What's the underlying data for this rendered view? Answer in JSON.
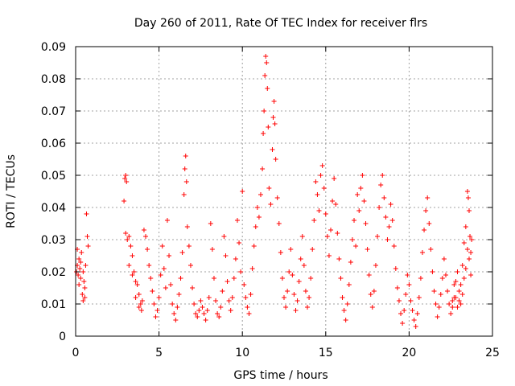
{
  "chart_data": {
    "type": "scatter",
    "title": "Day 260 of 2011, Rate Of TEC Index for receiver flrs",
    "xlabel": "GPS time / hours",
    "ylabel": "ROTI / TECUs",
    "xlim": [
      0,
      25
    ],
    "ylim": [
      0,
      0.09
    ],
    "xticks": [
      0,
      5,
      10,
      15,
      20,
      25
    ],
    "xtick_labels": [
      "0",
      "5",
      "10",
      "15",
      "20",
      "25"
    ],
    "yticks": [
      0,
      0.01,
      0.02,
      0.03,
      0.04,
      0.05,
      0.06,
      0.07,
      0.08,
      0.09
    ],
    "ytick_labels": [
      "0",
      "0.01",
      "0.02",
      "0.03",
      "0.04",
      "0.05",
      "0.06",
      "0.07",
      "0.08",
      "0.09"
    ],
    "grid": true,
    "marker": "+",
    "color": "#ff0000",
    "series": [
      {
        "name": "",
        "points": [
          [
            0.05,
            0.02
          ],
          [
            0.1,
            0.022
          ],
          [
            0.15,
            0.019
          ],
          [
            0.2,
            0.024
          ],
          [
            0.25,
            0.021
          ],
          [
            0.3,
            0.018
          ],
          [
            0.35,
            0.026
          ],
          [
            0.4,
            0.013
          ],
          [
            0.45,
            0.02
          ],
          [
            0.5,
            0.017
          ],
          [
            0.55,
            0.012
          ],
          [
            0.6,
            0.022
          ],
          [
            0.65,
            0.038
          ],
          [
            0.7,
            0.031
          ],
          [
            0.75,
            0.028
          ],
          [
            0.1,
            0.027
          ],
          [
            0.2,
            0.016
          ],
          [
            0.3,
            0.023
          ],
          [
            0.45,
            0.011
          ],
          [
            0.55,
            0.015
          ],
          [
            2.9,
            0.042
          ],
          [
            2.95,
            0.049
          ],
          [
            3.0,
            0.05
          ],
          [
            3.05,
            0.048
          ],
          [
            3.0,
            0.032
          ],
          [
            3.1,
            0.03
          ],
          [
            3.2,
            0.031
          ],
          [
            3.3,
            0.028
          ],
          [
            3.4,
            0.025
          ],
          [
            3.5,
            0.02
          ],
          [
            3.6,
            0.017
          ],
          [
            3.7,
            0.016
          ],
          [
            3.8,
            0.013
          ],
          [
            3.9,
            0.01
          ],
          [
            3.95,
            0.008
          ],
          [
            3.2,
            0.022
          ],
          [
            3.4,
            0.019
          ],
          [
            3.6,
            0.012
          ],
          [
            3.8,
            0.009
          ],
          [
            4.0,
            0.011
          ],
          [
            4.1,
            0.033
          ],
          [
            4.2,
            0.031
          ],
          [
            4.3,
            0.027
          ],
          [
            4.4,
            0.022
          ],
          [
            4.5,
            0.018
          ],
          [
            4.6,
            0.014
          ],
          [
            4.7,
            0.01
          ],
          [
            4.8,
            0.006
          ],
          [
            4.9,
            0.008
          ],
          [
            5.0,
            0.012
          ],
          [
            5.1,
            0.019
          ],
          [
            5.2,
            0.028
          ],
          [
            5.3,
            0.021
          ],
          [
            5.4,
            0.015
          ],
          [
            5.5,
            0.036
          ],
          [
            5.6,
            0.025
          ],
          [
            5.7,
            0.016
          ],
          [
            5.8,
            0.01
          ],
          [
            5.9,
            0.007
          ],
          [
            6.0,
            0.005
          ],
          [
            6.1,
            0.009
          ],
          [
            6.2,
            0.013
          ],
          [
            6.3,
            0.018
          ],
          [
            6.4,
            0.026
          ],
          [
            6.5,
            0.044
          ],
          [
            6.55,
            0.052
          ],
          [
            6.6,
            0.056
          ],
          [
            6.65,
            0.048
          ],
          [
            6.7,
            0.034
          ],
          [
            6.8,
            0.028
          ],
          [
            6.9,
            0.022
          ],
          [
            7.0,
            0.015
          ],
          [
            7.1,
            0.01
          ],
          [
            7.2,
            0.007
          ],
          [
            7.3,
            0.006
          ],
          [
            7.4,
            0.008
          ],
          [
            7.5,
            0.011
          ],
          [
            7.6,
            0.009
          ],
          [
            7.7,
            0.007
          ],
          [
            7.8,
            0.005
          ],
          [
            7.9,
            0.008
          ],
          [
            8.0,
            0.012
          ],
          [
            8.1,
            0.035
          ],
          [
            8.2,
            0.027
          ],
          [
            8.3,
            0.018
          ],
          [
            8.4,
            0.011
          ],
          [
            8.5,
            0.007
          ],
          [
            8.6,
            0.006
          ],
          [
            8.7,
            0.009
          ],
          [
            8.8,
            0.014
          ],
          [
            8.9,
            0.031
          ],
          [
            9.0,
            0.025
          ],
          [
            9.1,
            0.017
          ],
          [
            9.2,
            0.011
          ],
          [
            9.3,
            0.008
          ],
          [
            9.4,
            0.012
          ],
          [
            9.5,
            0.018
          ],
          [
            9.6,
            0.024
          ],
          [
            9.7,
            0.036
          ],
          [
            9.8,
            0.029
          ],
          [
            9.9,
            0.02
          ],
          [
            10.0,
            0.045
          ],
          [
            10.1,
            0.016
          ],
          [
            10.2,
            0.012
          ],
          [
            10.3,
            0.009
          ],
          [
            10.4,
            0.007
          ],
          [
            10.5,
            0.013
          ],
          [
            10.6,
            0.021
          ],
          [
            10.7,
            0.028
          ],
          [
            10.8,
            0.034
          ],
          [
            10.9,
            0.04
          ],
          [
            11.0,
            0.037
          ],
          [
            11.1,
            0.044
          ],
          [
            11.2,
            0.052
          ],
          [
            11.25,
            0.063
          ],
          [
            11.3,
            0.07
          ],
          [
            11.35,
            0.081
          ],
          [
            11.4,
            0.087
          ],
          [
            11.45,
            0.085
          ],
          [
            11.5,
            0.077
          ],
          [
            11.55,
            0.065
          ],
          [
            11.6,
            0.046
          ],
          [
            11.7,
            0.041
          ],
          [
            11.8,
            0.058
          ],
          [
            11.85,
            0.068
          ],
          [
            11.9,
            0.073
          ],
          [
            11.95,
            0.066
          ],
          [
            12.0,
            0.055
          ],
          [
            12.1,
            0.043
          ],
          [
            12.2,
            0.035
          ],
          [
            12.3,
            0.026
          ],
          [
            12.4,
            0.018
          ],
          [
            12.5,
            0.012
          ],
          [
            12.6,
            0.009
          ],
          [
            12.7,
            0.014
          ],
          [
            12.8,
            0.02
          ],
          [
            12.9,
            0.027
          ],
          [
            13.0,
            0.019
          ],
          [
            13.1,
            0.013
          ],
          [
            13.2,
            0.008
          ],
          [
            13.3,
            0.011
          ],
          [
            13.4,
            0.017
          ],
          [
            13.5,
            0.024
          ],
          [
            13.6,
            0.031
          ],
          [
            13.7,
            0.022
          ],
          [
            13.8,
            0.014
          ],
          [
            13.9,
            0.009
          ],
          [
            14.0,
            0.012
          ],
          [
            14.1,
            0.018
          ],
          [
            14.2,
            0.027
          ],
          [
            14.3,
            0.036
          ],
          [
            14.4,
            0.048
          ],
          [
            14.5,
            0.044
          ],
          [
            14.6,
            0.039
          ],
          [
            14.7,
            0.05
          ],
          [
            14.8,
            0.053
          ],
          [
            14.9,
            0.046
          ],
          [
            15.0,
            0.038
          ],
          [
            15.1,
            0.031
          ],
          [
            15.2,
            0.025
          ],
          [
            15.3,
            0.033
          ],
          [
            15.4,
            0.042
          ],
          [
            15.5,
            0.049
          ],
          [
            15.6,
            0.041
          ],
          [
            15.7,
            0.032
          ],
          [
            15.8,
            0.024
          ],
          [
            15.9,
            0.018
          ],
          [
            16.0,
            0.012
          ],
          [
            16.1,
            0.008
          ],
          [
            16.2,
            0.005
          ],
          [
            16.3,
            0.01
          ],
          [
            16.4,
            0.016
          ],
          [
            16.5,
            0.023
          ],
          [
            16.6,
            0.03
          ],
          [
            16.7,
            0.036
          ],
          [
            16.8,
            0.028
          ],
          [
            16.9,
            0.044
          ],
          [
            17.0,
            0.039
          ],
          [
            17.1,
            0.046
          ],
          [
            17.2,
            0.05
          ],
          [
            17.3,
            0.042
          ],
          [
            17.4,
            0.035
          ],
          [
            17.5,
            0.027
          ],
          [
            17.6,
            0.019
          ],
          [
            17.7,
            0.013
          ],
          [
            17.8,
            0.009
          ],
          [
            17.9,
            0.014
          ],
          [
            18.0,
            0.022
          ],
          [
            18.1,
            0.031
          ],
          [
            18.2,
            0.04
          ],
          [
            18.3,
            0.047
          ],
          [
            18.4,
            0.05
          ],
          [
            18.5,
            0.043
          ],
          [
            18.6,
            0.037
          ],
          [
            18.7,
            0.03
          ],
          [
            18.8,
            0.034
          ],
          [
            18.9,
            0.041
          ],
          [
            19.0,
            0.036
          ],
          [
            19.1,
            0.028
          ],
          [
            19.2,
            0.021
          ],
          [
            19.3,
            0.015
          ],
          [
            19.4,
            0.011
          ],
          [
            19.5,
            0.007
          ],
          [
            19.6,
            0.004
          ],
          [
            19.7,
            0.008
          ],
          [
            19.8,
            0.013
          ],
          [
            19.9,
            0.019
          ],
          [
            20.0,
            0.016
          ],
          [
            20.1,
            0.011
          ],
          [
            20.2,
            0.008
          ],
          [
            20.3,
            0.005
          ],
          [
            20.4,
            0.003
          ],
          [
            20.5,
            0.007
          ],
          [
            20.6,
            0.012
          ],
          [
            20.7,
            0.018
          ],
          [
            20.8,
            0.026
          ],
          [
            20.9,
            0.033
          ],
          [
            21.0,
            0.039
          ],
          [
            21.1,
            0.043
          ],
          [
            21.2,
            0.035
          ],
          [
            21.3,
            0.027
          ],
          [
            21.4,
            0.02
          ],
          [
            21.5,
            0.014
          ],
          [
            21.6,
            0.01
          ],
          [
            21.7,
            0.006
          ],
          [
            21.8,
            0.009
          ],
          [
            21.9,
            0.013
          ],
          [
            22.0,
            0.018
          ],
          [
            22.1,
            0.024
          ],
          [
            22.2,
            0.019
          ],
          [
            22.3,
            0.014
          ],
          [
            22.4,
            0.01
          ],
          [
            22.5,
            0.007
          ],
          [
            22.6,
            0.011
          ],
          [
            22.7,
            0.016
          ],
          [
            22.8,
            0.012
          ],
          [
            22.9,
            0.009
          ],
          [
            23.0,
            0.011
          ],
          [
            23.1,
            0.016
          ],
          [
            23.2,
            0.022
          ],
          [
            23.3,
            0.029
          ],
          [
            23.4,
            0.034
          ],
          [
            23.5,
            0.045
          ],
          [
            23.55,
            0.043
          ],
          [
            23.6,
            0.039
          ],
          [
            23.65,
            0.031
          ],
          [
            23.7,
            0.026
          ],
          [
            23.75,
            0.03
          ],
          [
            23.3,
            0.018
          ],
          [
            23.4,
            0.021
          ],
          [
            23.5,
            0.027
          ],
          [
            23.6,
            0.024
          ],
          [
            23.7,
            0.019
          ],
          [
            23.2,
            0.013
          ],
          [
            23.1,
            0.01
          ],
          [
            23.0,
            0.014
          ],
          [
            22.9,
            0.02
          ],
          [
            22.8,
            0.017
          ],
          [
            22.7,
            0.012
          ],
          [
            22.6,
            0.009
          ]
        ]
      }
    ]
  }
}
